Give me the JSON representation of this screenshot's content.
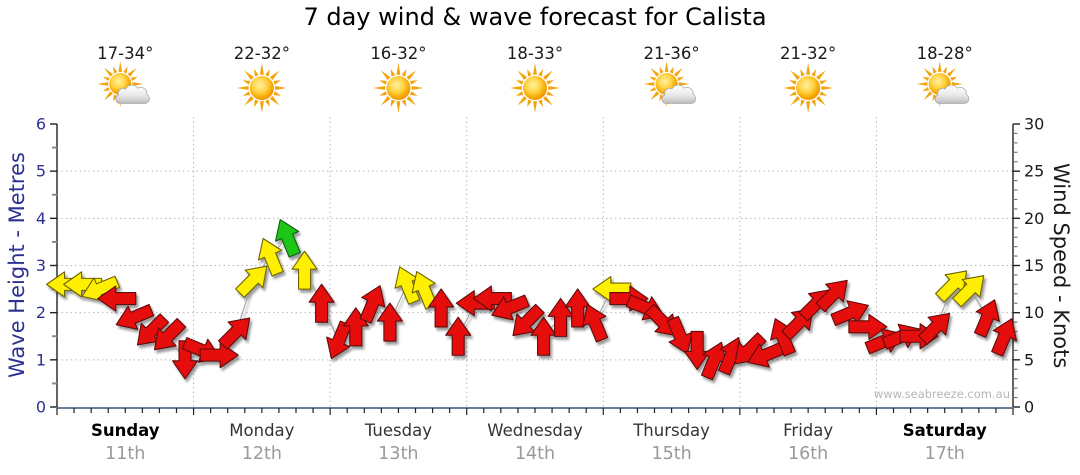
{
  "chart_data": {
    "type": "scatter",
    "marker": "wind-direction-arrow",
    "title": "7 day wind & wave forecast for Calista",
    "watermark": "www.seabreeze.com.au",
    "left_axis": {
      "label": "Wave Height - Metres",
      "min": 0,
      "max": 6,
      "major_step": 1,
      "minor_step": 0.5,
      "color": "#2d3192"
    },
    "right_axis": {
      "label": "Wind Speed - Knots",
      "min": 0,
      "max": 30,
      "major_step": 5,
      "minor_step": 1,
      "color": "#1a1a1a"
    },
    "x_axis": {
      "points_per_day": 8,
      "interval_hours": 3,
      "grid": "dotted-day-boundaries"
    },
    "arrow_colors": {
      "red": "#e60f0f",
      "yellow": "#ffef00",
      "green": "#1dc517"
    },
    "days": [
      {
        "name": "Sunday",
        "date": "11th",
        "bold": true,
        "temp_range": "17-34°",
        "weather_icon": "sun-cloud-icon",
        "wind": [
          {
            "knots": 13,
            "dir": "W",
            "color": "yellow"
          },
          {
            "knots": 13,
            "dir": "W",
            "color": "yellow"
          },
          {
            "knots": 12.5,
            "dir": "WSW",
            "color": "yellow"
          },
          {
            "knots": 11.5,
            "dir": "W",
            "color": "red"
          },
          {
            "knots": 9.5,
            "dir": "WSW",
            "color": "red"
          },
          {
            "knots": 8,
            "dir": "SW",
            "color": "red"
          },
          {
            "knots": 7.5,
            "dir": "SW",
            "color": "red"
          },
          {
            "knots": 5,
            "dir": "S",
            "color": "red"
          }
        ]
      },
      {
        "name": "Monday",
        "date": "12th",
        "bold": false,
        "temp_range": "22-32°",
        "weather_icon": "sun-icon",
        "wind": [
          {
            "knots": 6,
            "dir": "ESE",
            "color": "red"
          },
          {
            "knots": 5.5,
            "dir": "E",
            "color": "red"
          },
          {
            "knots": 8,
            "dir": "NE",
            "color": "red"
          },
          {
            "knots": 13.5,
            "dir": "NE",
            "color": "yellow"
          },
          {
            "knots": 16,
            "dir": "NNW",
            "color": "yellow"
          },
          {
            "knots": 18,
            "dir": "NNW",
            "color": "green"
          },
          {
            "knots": 14.5,
            "dir": "N",
            "color": "yellow"
          },
          {
            "knots": 11,
            "dir": "N",
            "color": "red"
          }
        ]
      },
      {
        "name": "Tuesday",
        "date": "13th",
        "bold": false,
        "temp_range": "16-32°",
        "weather_icon": "sun-icon",
        "wind": [
          {
            "knots": 7,
            "dir": "SSW",
            "color": "red"
          },
          {
            "knots": 8.5,
            "dir": "N",
            "color": "red"
          },
          {
            "knots": 11,
            "dir": "NNE",
            "color": "red"
          },
          {
            "knots": 9,
            "dir": "N",
            "color": "red"
          },
          {
            "knots": 13,
            "dir": "NNW",
            "color": "yellow"
          },
          {
            "knots": 12.5,
            "dir": "NNW",
            "color": "yellow"
          },
          {
            "knots": 10.5,
            "dir": "N",
            "color": "red"
          },
          {
            "knots": 7.5,
            "dir": "N",
            "color": "red"
          }
        ]
      },
      {
        "name": "Wednesday",
        "date": "14th",
        "bold": false,
        "temp_range": "18-33°",
        "weather_icon": "sun-icon",
        "wind": [
          {
            "knots": 11,
            "dir": "W",
            "color": "red"
          },
          {
            "knots": 11.5,
            "dir": "W",
            "color": "red"
          },
          {
            "knots": 10.5,
            "dir": "WSW",
            "color": "red"
          },
          {
            "knots": 9,
            "dir": "SW",
            "color": "red"
          },
          {
            "knots": 7.5,
            "dir": "N",
            "color": "red"
          },
          {
            "knots": 9.5,
            "dir": "N",
            "color": "red"
          },
          {
            "knots": 10.5,
            "dir": "N",
            "color": "red"
          },
          {
            "knots": 9,
            "dir": "NNW",
            "color": "red"
          }
        ]
      },
      {
        "name": "Thursday",
        "date": "15th",
        "bold": false,
        "temp_range": "21-36°",
        "weather_icon": "sun-cloud-icon",
        "wind": [
          {
            "knots": 12.5,
            "dir": "W",
            "color": "yellow"
          },
          {
            "knots": 11.5,
            "dir": "E",
            "color": "red"
          },
          {
            "knots": 10.5,
            "dir": "ESE",
            "color": "red"
          },
          {
            "knots": 9,
            "dir": "SE",
            "color": "red"
          },
          {
            "knots": 7.5,
            "dir": "SSE",
            "color": "red"
          },
          {
            "knots": 6,
            "dir": "S",
            "color": "red"
          },
          {
            "knots": 5,
            "dir": "NNE",
            "color": "red"
          },
          {
            "knots": 5.5,
            "dir": "NNE",
            "color": "red"
          }
        ]
      },
      {
        "name": "Friday",
        "date": "16th",
        "bold": false,
        "temp_range": "21-32°",
        "weather_icon": "sun-icon",
        "wind": [
          {
            "knots": 6,
            "dir": "SW",
            "color": "red"
          },
          {
            "knots": 5.5,
            "dir": "WSW",
            "color": "red"
          },
          {
            "knots": 7.5,
            "dir": "NNW",
            "color": "red"
          },
          {
            "knots": 9,
            "dir": "NE",
            "color": "red"
          },
          {
            "knots": 11,
            "dir": "NE",
            "color": "red"
          },
          {
            "knots": 12,
            "dir": "NE",
            "color": "red"
          },
          {
            "knots": 10,
            "dir": "ENE",
            "color": "red"
          },
          {
            "knots": 8.5,
            "dir": "E",
            "color": "red"
          }
        ]
      },
      {
        "name": "Saturday",
        "date": "17th",
        "bold": true,
        "temp_range": "18-28°",
        "weather_icon": "sun-cloud-icon",
        "wind": [
          {
            "knots": 7,
            "dir": "ENE",
            "color": "red"
          },
          {
            "knots": 7.5,
            "dir": "ENE",
            "color": "red"
          },
          {
            "knots": 7.5,
            "dir": "E",
            "color": "red"
          },
          {
            "knots": 8.5,
            "dir": "NE",
            "color": "red"
          },
          {
            "knots": 13,
            "dir": "NE",
            "color": "yellow"
          },
          {
            "knots": 12.5,
            "dir": "NE",
            "color": "yellow"
          },
          {
            "knots": 9.5,
            "dir": "NNE",
            "color": "red"
          },
          {
            "knots": 7.5,
            "dir": "NNE",
            "color": "red"
          }
        ]
      }
    ]
  }
}
